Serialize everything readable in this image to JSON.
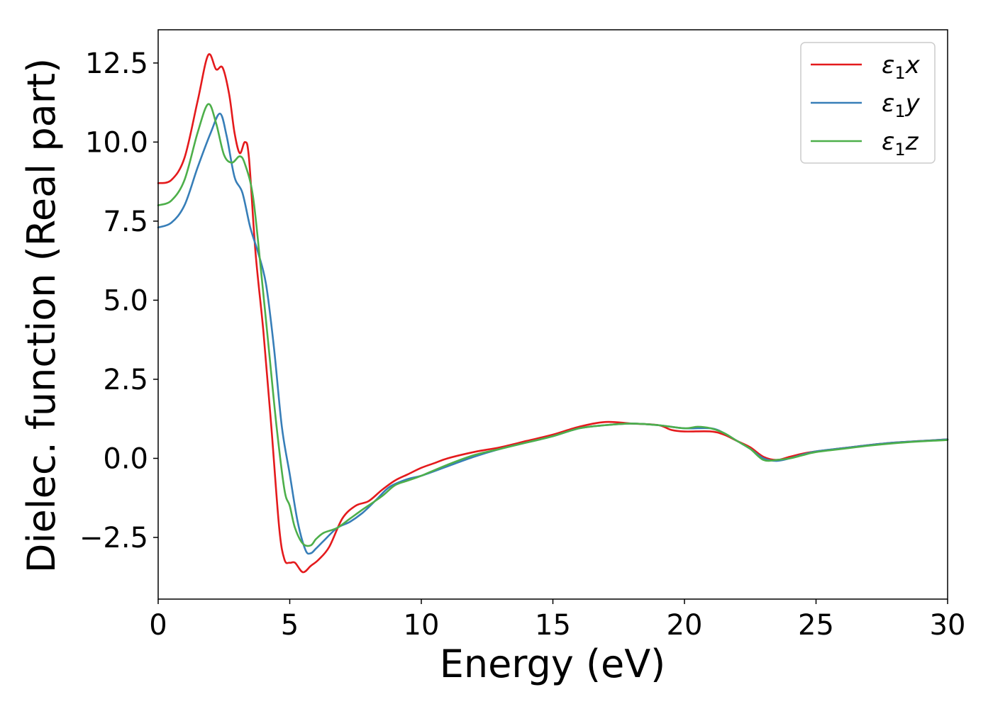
{
  "chart_data": {
    "type": "line",
    "title": "",
    "xlabel": "Energy (eV)",
    "ylabel": "Dielec. function (Real part)",
    "xlim": [
      0,
      30
    ],
    "ylim": [
      -4.45,
      13.55
    ],
    "xticks": [
      0,
      5,
      10,
      15,
      20,
      25,
      30
    ],
    "xtick_labels": [
      "0",
      "5",
      "10",
      "15",
      "20",
      "25",
      "30"
    ],
    "yticks": [
      -2.5,
      0.0,
      2.5,
      5.0,
      7.5,
      10.0,
      12.5
    ],
    "ytick_labels": [
      "−2.5",
      "0.0",
      "2.5",
      "5.0",
      "7.5",
      "10.0",
      "12.5"
    ],
    "grid": false,
    "legend_position": "top-right",
    "series": [
      {
        "name": "x",
        "legend_base": "ε",
        "legend_sub": "1",
        "legend_var": "x",
        "color": "#e41a1c",
        "points": [
          [
            0,
            8.7
          ],
          [
            0.5,
            8.8
          ],
          [
            1.0,
            9.5
          ],
          [
            1.5,
            11.3
          ],
          [
            1.9,
            12.75
          ],
          [
            2.2,
            12.3
          ],
          [
            2.45,
            12.35
          ],
          [
            2.7,
            11.5
          ],
          [
            2.9,
            10.3
          ],
          [
            3.1,
            9.65
          ],
          [
            3.3,
            10.0
          ],
          [
            3.45,
            9.5
          ],
          [
            3.7,
            6.5
          ],
          [
            4.0,
            4.0
          ],
          [
            4.3,
            1.0
          ],
          [
            4.6,
            -2.2
          ],
          [
            4.8,
            -3.2
          ],
          [
            5.0,
            -3.3
          ],
          [
            5.2,
            -3.3
          ],
          [
            5.5,
            -3.6
          ],
          [
            5.8,
            -3.4
          ],
          [
            6.1,
            -3.2
          ],
          [
            6.5,
            -2.8
          ],
          [
            7.0,
            -1.9
          ],
          [
            7.5,
            -1.5
          ],
          [
            8.0,
            -1.35
          ],
          [
            8.5,
            -1.0
          ],
          [
            9.0,
            -0.7
          ],
          [
            9.5,
            -0.5
          ],
          [
            10.0,
            -0.3
          ],
          [
            10.5,
            -0.15
          ],
          [
            11.0,
            0.0
          ],
          [
            12.0,
            0.2
          ],
          [
            13.0,
            0.35
          ],
          [
            14.0,
            0.55
          ],
          [
            15.0,
            0.75
          ],
          [
            16.0,
            1.0
          ],
          [
            17.0,
            1.15
          ],
          [
            18.0,
            1.1
          ],
          [
            19.0,
            1.05
          ],
          [
            19.5,
            0.9
          ],
          [
            20.0,
            0.85
          ],
          [
            21.0,
            0.85
          ],
          [
            21.5,
            0.75
          ],
          [
            22.0,
            0.55
          ],
          [
            22.5,
            0.35
          ],
          [
            23.0,
            0.05
          ],
          [
            23.5,
            -0.05
          ],
          [
            24.0,
            0.05
          ],
          [
            24.5,
            0.15
          ],
          [
            25.0,
            0.22
          ],
          [
            26.0,
            0.32
          ],
          [
            27.0,
            0.42
          ],
          [
            28.0,
            0.5
          ],
          [
            29.0,
            0.55
          ],
          [
            30.0,
            0.6
          ]
        ]
      },
      {
        "name": "y",
        "legend_base": "ε",
        "legend_sub": "1",
        "legend_var": "y",
        "color": "#377eb8",
        "points": [
          [
            0,
            7.3
          ],
          [
            0.5,
            7.45
          ],
          [
            1.0,
            8.0
          ],
          [
            1.5,
            9.2
          ],
          [
            2.0,
            10.3
          ],
          [
            2.35,
            10.9
          ],
          [
            2.6,
            10.2
          ],
          [
            2.9,
            8.9
          ],
          [
            3.2,
            8.4
          ],
          [
            3.5,
            7.3
          ],
          [
            3.8,
            6.5
          ],
          [
            4.1,
            5.5
          ],
          [
            4.4,
            3.5
          ],
          [
            4.7,
            1.0
          ],
          [
            5.0,
            -0.5
          ],
          [
            5.3,
            -2.0
          ],
          [
            5.6,
            -2.9
          ],
          [
            5.8,
            -3.0
          ],
          [
            6.0,
            -2.85
          ],
          [
            6.3,
            -2.6
          ],
          [
            6.8,
            -2.2
          ],
          [
            7.3,
            -2.0
          ],
          [
            7.8,
            -1.7
          ],
          [
            8.3,
            -1.3
          ],
          [
            8.8,
            -0.9
          ],
          [
            9.5,
            -0.65
          ],
          [
            10.0,
            -0.55
          ],
          [
            11.0,
            -0.25
          ],
          [
            12.0,
            0.05
          ],
          [
            13.0,
            0.3
          ],
          [
            14.0,
            0.5
          ],
          [
            15.0,
            0.7
          ],
          [
            16.0,
            0.95
          ],
          [
            17.0,
            1.05
          ],
          [
            18.0,
            1.1
          ],
          [
            19.0,
            1.05
          ],
          [
            20.0,
            0.95
          ],
          [
            21.0,
            0.95
          ],
          [
            21.5,
            0.8
          ],
          [
            22.0,
            0.55
          ],
          [
            22.5,
            0.3
          ],
          [
            23.0,
            0.0
          ],
          [
            23.5,
            -0.08
          ],
          [
            24.0,
            0.0
          ],
          [
            24.5,
            0.12
          ],
          [
            25.0,
            0.22
          ],
          [
            26.0,
            0.32
          ],
          [
            27.0,
            0.42
          ],
          [
            28.0,
            0.5
          ],
          [
            29.0,
            0.55
          ],
          [
            30.0,
            0.6
          ]
        ]
      },
      {
        "name": "z",
        "legend_base": "ε",
        "legend_sub": "1",
        "legend_var": "z",
        "color": "#4daf4a",
        "points": [
          [
            0,
            8.0
          ],
          [
            0.5,
            8.15
          ],
          [
            1.0,
            8.8
          ],
          [
            1.5,
            10.3
          ],
          [
            1.9,
            11.2
          ],
          [
            2.2,
            10.6
          ],
          [
            2.5,
            9.6
          ],
          [
            2.8,
            9.35
          ],
          [
            3.1,
            9.55
          ],
          [
            3.3,
            9.3
          ],
          [
            3.6,
            8.3
          ],
          [
            3.9,
            6.0
          ],
          [
            4.2,
            3.5
          ],
          [
            4.5,
            1.0
          ],
          [
            4.8,
            -1.0
          ],
          [
            5.0,
            -1.5
          ],
          [
            5.2,
            -2.2
          ],
          [
            5.5,
            -2.7
          ],
          [
            5.8,
            -2.75
          ],
          [
            6.0,
            -2.55
          ],
          [
            6.3,
            -2.35
          ],
          [
            6.8,
            -2.2
          ],
          [
            7.3,
            -1.9
          ],
          [
            7.8,
            -1.6
          ],
          [
            8.5,
            -1.2
          ],
          [
            9.0,
            -0.85
          ],
          [
            9.5,
            -0.7
          ],
          [
            10.0,
            -0.55
          ],
          [
            11.0,
            -0.2
          ],
          [
            12.0,
            0.1
          ],
          [
            13.0,
            0.3
          ],
          [
            14.0,
            0.5
          ],
          [
            15.0,
            0.7
          ],
          [
            16.0,
            0.95
          ],
          [
            17.0,
            1.05
          ],
          [
            18.0,
            1.1
          ],
          [
            19.0,
            1.05
          ],
          [
            20.0,
            0.95
          ],
          [
            20.5,
            1.0
          ],
          [
            21.0,
            0.95
          ],
          [
            21.5,
            0.8
          ],
          [
            22.0,
            0.55
          ],
          [
            22.5,
            0.3
          ],
          [
            23.0,
            -0.05
          ],
          [
            23.5,
            -0.05
          ],
          [
            24.0,
            0.0
          ],
          [
            24.5,
            0.1
          ],
          [
            25.0,
            0.2
          ],
          [
            26.0,
            0.3
          ],
          [
            27.0,
            0.4
          ],
          [
            28.0,
            0.48
          ],
          [
            29.0,
            0.54
          ],
          [
            30.0,
            0.58
          ]
        ]
      }
    ]
  }
}
